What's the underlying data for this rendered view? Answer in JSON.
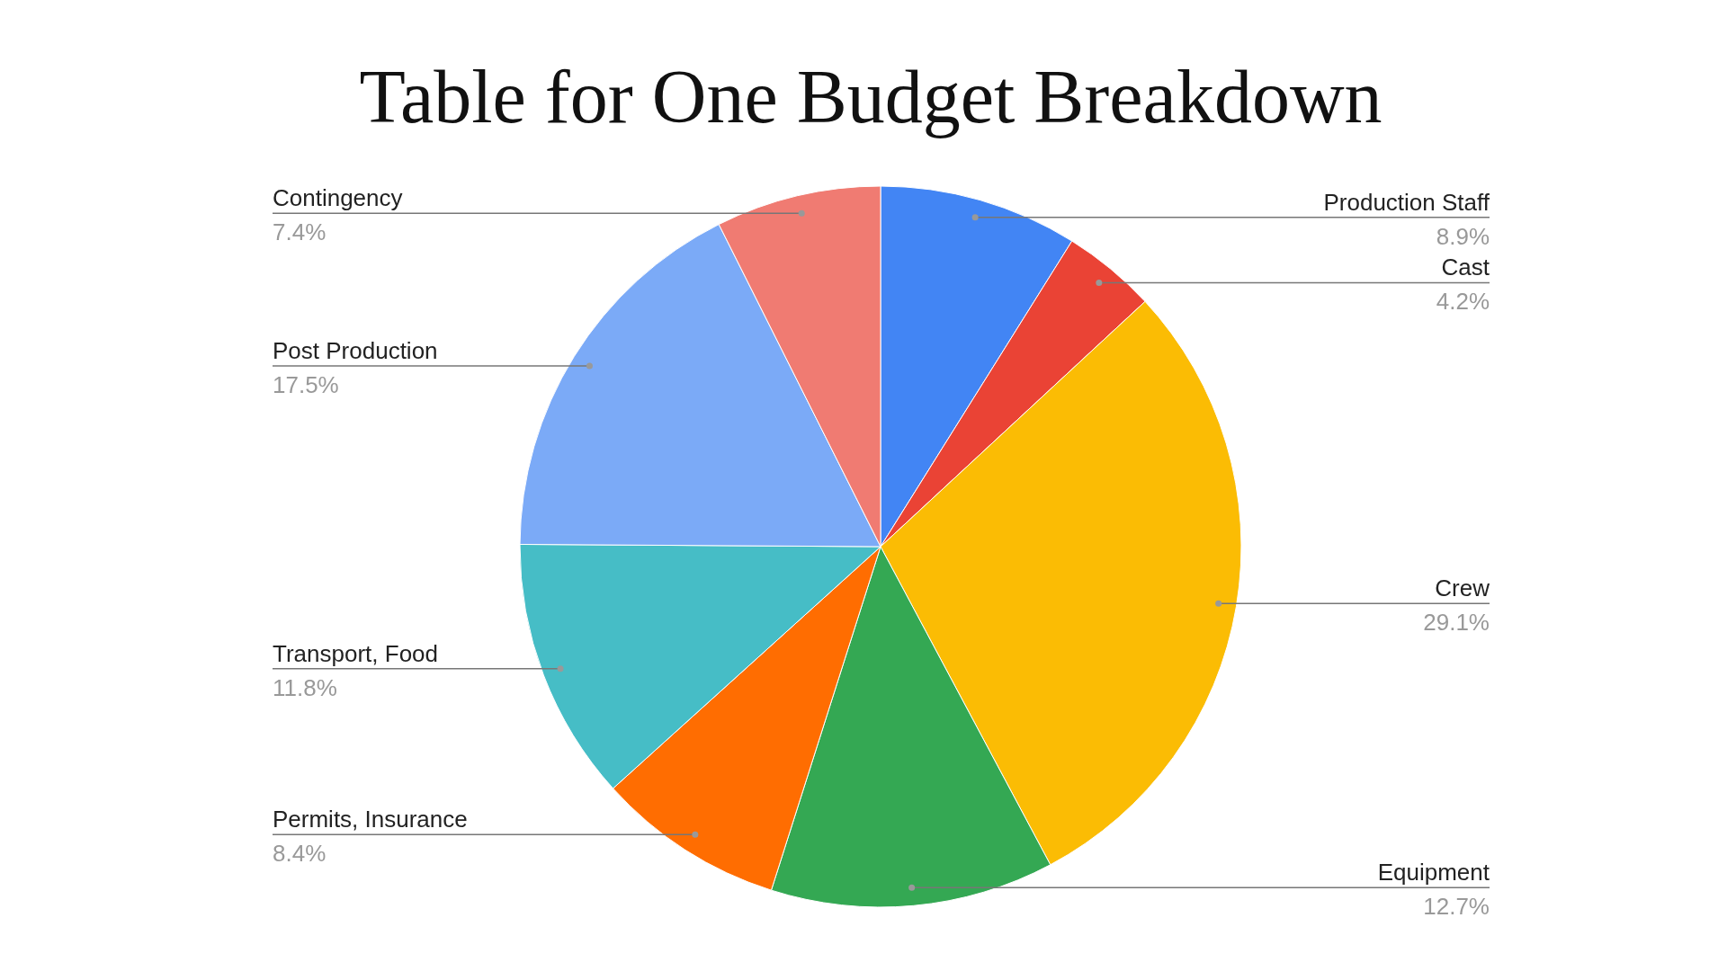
{
  "chart_data": {
    "type": "pie",
    "title": "Table for One Budget Breakdown",
    "categories": [
      "Production Staff",
      "Cast",
      "Crew",
      "Equipment",
      "Permits, Insurance",
      "Transport, Food",
      "Post Production",
      "Contingency"
    ],
    "values": [
      8.9,
      4.2,
      29.1,
      12.7,
      8.4,
      11.8,
      17.5,
      7.4
    ],
    "colors": [
      "#4285f4",
      "#ea4335",
      "#fbbc04",
      "#34a853",
      "#ff6d01",
      "#46bdc6",
      "#7baaf7",
      "#f07b72"
    ],
    "value_labels": [
      "8.9%",
      "4.2%",
      "29.1%",
      "12.7%",
      "8.4%",
      "11.8%",
      "17.5%",
      "7.4%"
    ],
    "legend": false
  }
}
